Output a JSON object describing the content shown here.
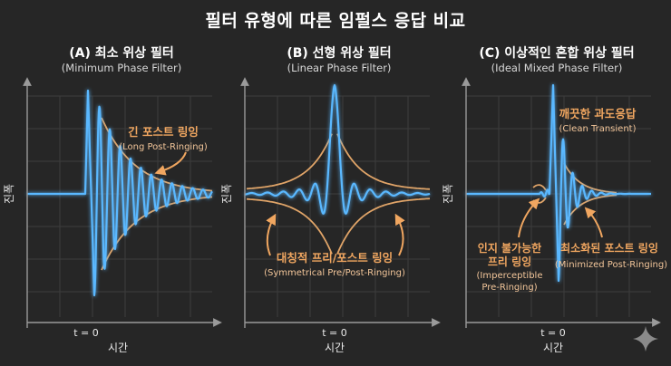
{
  "title": "필터 유형에 따른 임펄스 응답 비교",
  "axes": {
    "y_label": "진폭",
    "x_label": "시간",
    "t0_label": "t = 0"
  },
  "panels": [
    {
      "title": "(A) 최소 위상 필터",
      "subtitle": "(Minimum Phase Filter)",
      "annotations": [
        {
          "text": "긴 포스트 링잉",
          "sub": "(Long Post-Ringing)"
        }
      ]
    },
    {
      "title": "(B) 선형 위상 필터",
      "subtitle": "(Linear Phase Filter)",
      "annotations": [
        {
          "text": "대칭적 프리/포스트 링잉",
          "sub": "(Symmetrical Pre/Post-Ringing)"
        }
      ]
    },
    {
      "title": "(C) 이상적인 혼합 위상 필터",
      "subtitle": "(Ideal Mixed Phase Filter)",
      "annotations": [
        {
          "text": "깨끗한 과도응답",
          "sub": "(Clean Transient)"
        },
        {
          "text": "인지 불가능한",
          "text2": "프리 링잉",
          "sub": "(Imperceptible",
          "sub2": "Pre-Ringing)"
        },
        {
          "text": "최소화된 포스트 링잉",
          "sub": "(Minimized Post-Ringing)"
        }
      ]
    }
  ],
  "colors": {
    "background": "#262626",
    "signal": "#5ab8ff",
    "envelope": "#e0a468",
    "annotation": "#f0a660",
    "grid": "#3d3d3d",
    "axis": "#9a9a9a"
  },
  "icons": {
    "corner": "sparkle-icon"
  }
}
